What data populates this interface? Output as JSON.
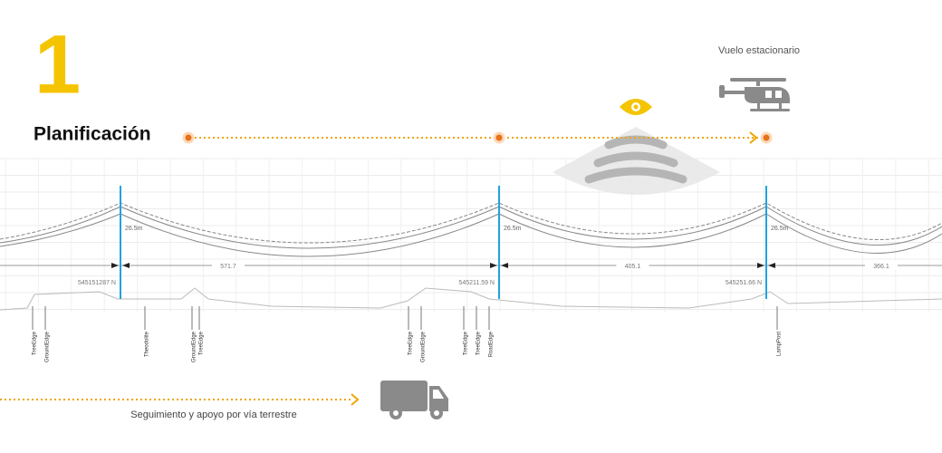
{
  "header": {
    "step": "1",
    "title": "Planificación"
  },
  "hover": {
    "label": "Vuelo estacionario"
  },
  "ground": {
    "label": "Seguimiento y apoyo por vía terrestre"
  },
  "profile": {
    "towers": [
      {
        "height": "26.5m",
        "coord": "545151287 N"
      },
      {
        "height": "26.5m",
        "coord": "545211.59 N"
      },
      {
        "height": "26.5m",
        "coord": "545251.66 N"
      }
    ],
    "spans": [
      "571.7",
      "405.1",
      "366.1"
    ],
    "features": [
      "TreeEdge",
      "GroundEdge",
      "Theodolite",
      "GroundEdge",
      "TreeEdge",
      "TreeEdge",
      "GroundEdge",
      "TreeEdge",
      "TreeEdge",
      "RoadEdge",
      "LampPost"
    ]
  }
}
